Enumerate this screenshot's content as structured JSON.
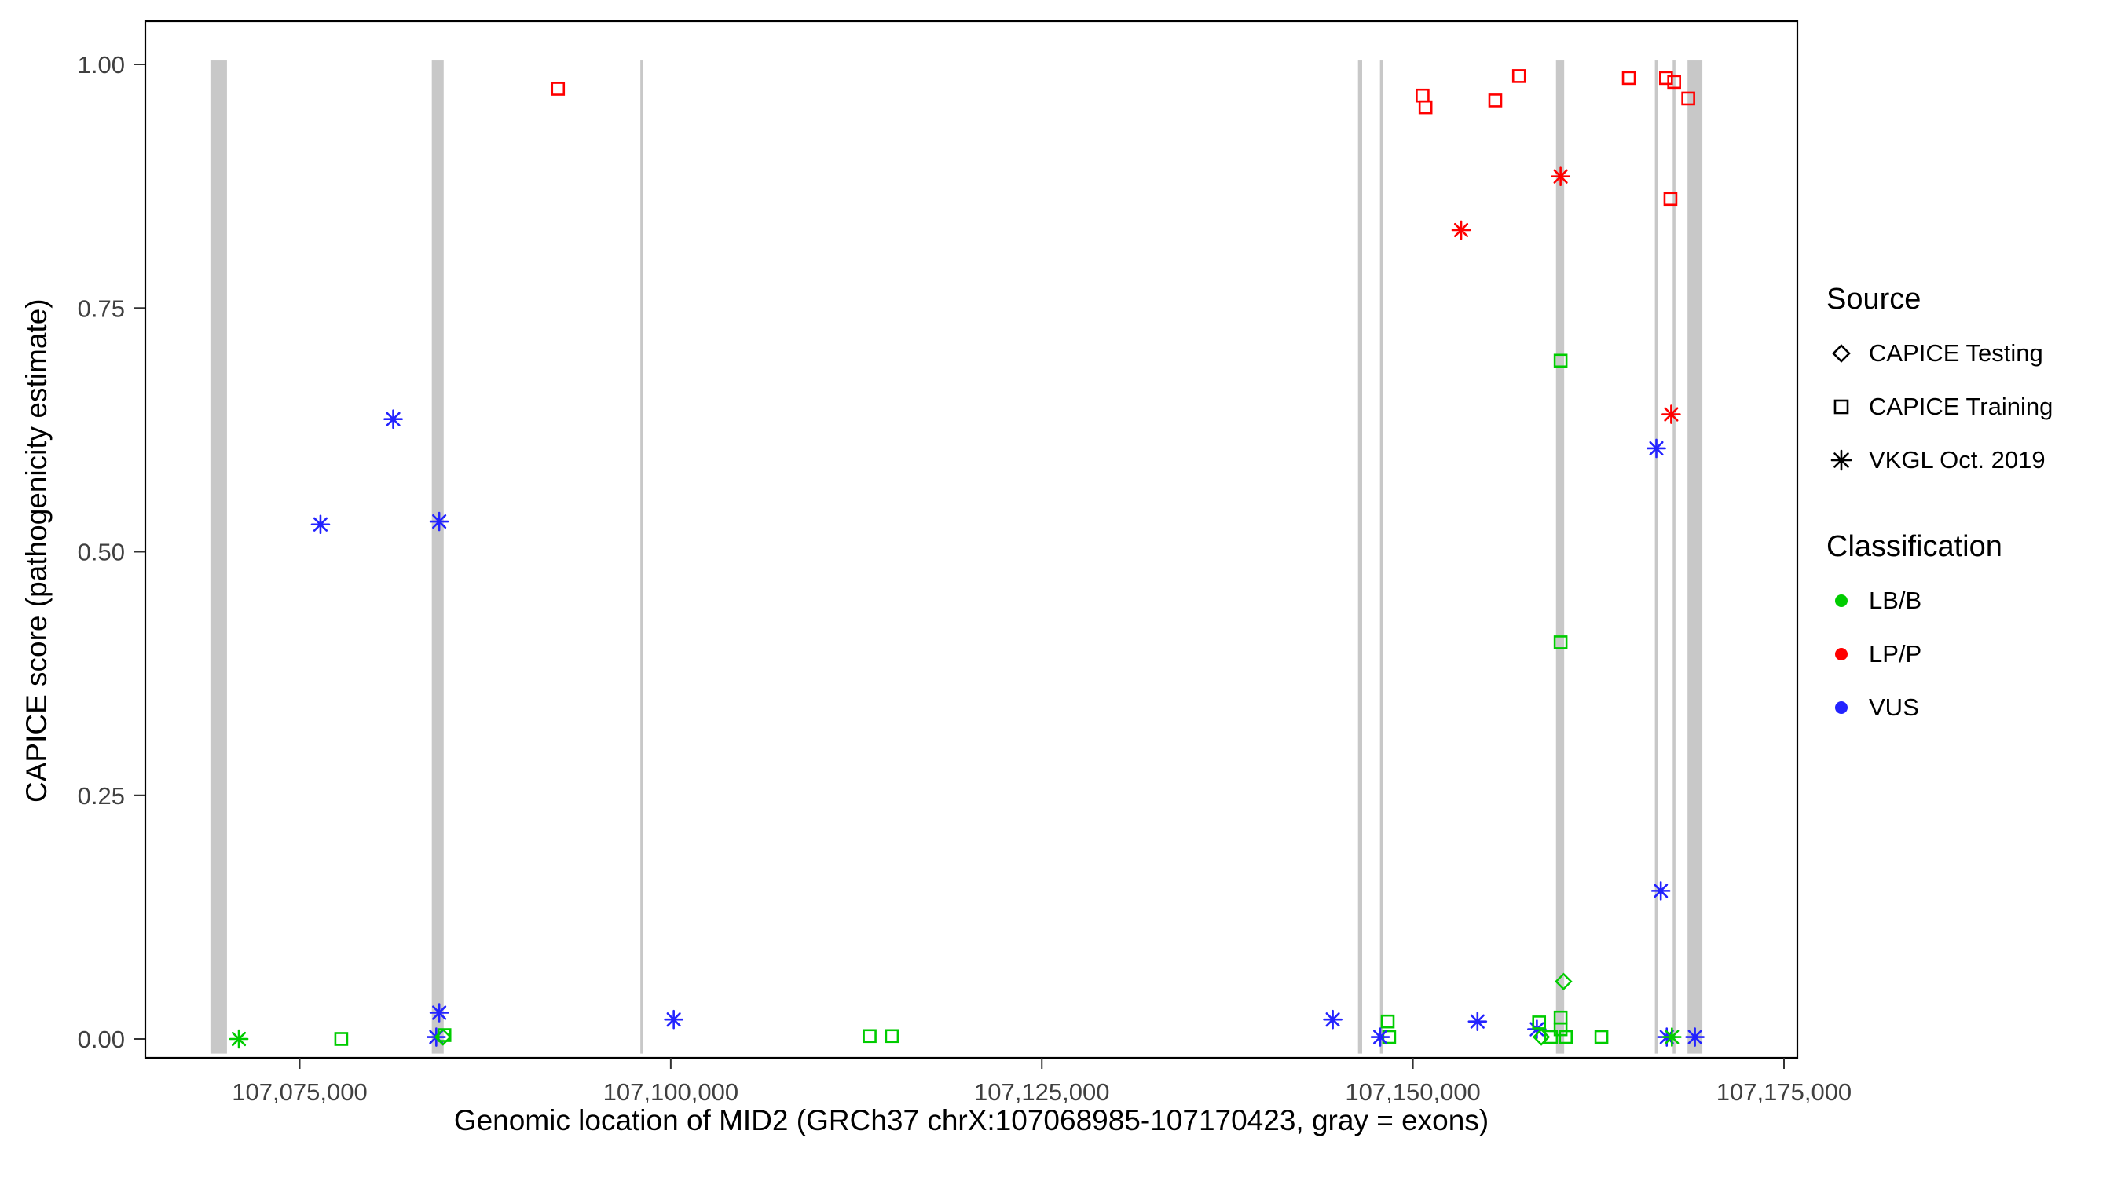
{
  "chart_data": {
    "type": "scatter",
    "title": "",
    "xlabel": "Genomic location of MID2 (GRCh37 chrX:107068985-107170423, gray = exons)",
    "ylabel": "CAPICE score (pathogenicity estimate)",
    "xlim": [
      107064600,
      107175900
    ],
    "ylim": [
      0,
      1
    ],
    "grid": false,
    "legend_position": "right",
    "x_ticks": [
      {
        "value": 107075000,
        "label": "107,075,000"
      },
      {
        "value": 107100000,
        "label": "107,100,000"
      },
      {
        "value": 107125000,
        "label": "107,125,000"
      },
      {
        "value": 107150000,
        "label": "107,150,000"
      },
      {
        "value": 107175000,
        "label": "107,175,000"
      }
    ],
    "y_ticks": [
      {
        "value": 0.0,
        "label": "0.00"
      },
      {
        "value": 0.25,
        "label": "0.25"
      },
      {
        "value": 0.5,
        "label": "0.50"
      },
      {
        "value": 0.75,
        "label": "0.75"
      },
      {
        "value": 1.0,
        "label": "1.00"
      }
    ],
    "exon_color": "#c8c8c8",
    "exons": [
      [
        107068985,
        107070100
      ],
      [
        107083900,
        107084700
      ],
      [
        107097950,
        107098150
      ],
      [
        107146300,
        107146580
      ],
      [
        107147780,
        107147970
      ],
      [
        107159640,
        107160190
      ],
      [
        107166300,
        107166490
      ],
      [
        107167500,
        107167690
      ],
      [
        107168500,
        107169500
      ]
    ],
    "class_colors": {
      "LB/B": "#00cc00",
      "LP/P": "#ff0000",
      "VUS": "#2323ff"
    },
    "shape_map": {
      "CAPICE Testing": "diamond",
      "CAPICE Training": "square",
      "VKGL Oct. 2019": "asterisk"
    },
    "points": [
      {
        "x": 107070900,
        "y": 0.0,
        "source": "VKGL Oct. 2019",
        "classification": "LB/B"
      },
      {
        "x": 107076400,
        "y": 0.528,
        "source": "VKGL Oct. 2019",
        "classification": "VUS"
      },
      {
        "x": 107077800,
        "y": 0.0,
        "source": "CAPICE Training",
        "classification": "LB/B"
      },
      {
        "x": 107081300,
        "y": 0.636,
        "source": "VKGL Oct. 2019",
        "classification": "VUS"
      },
      {
        "x": 107084400,
        "y": 0.531,
        "source": "VKGL Oct. 2019",
        "classification": "VUS"
      },
      {
        "x": 107084400,
        "y": 0.027,
        "source": "VKGL Oct. 2019",
        "classification": "VUS"
      },
      {
        "x": 107084200,
        "y": 0.002,
        "source": "VKGL Oct. 2019",
        "classification": "VUS"
      },
      {
        "x": 107084650,
        "y": 0.002,
        "source": "CAPICE Testing",
        "classification": "LB/B"
      },
      {
        "x": 107084750,
        "y": 0.004,
        "source": "CAPICE Training",
        "classification": "LB/B"
      },
      {
        "x": 107092400,
        "y": 0.975,
        "source": "CAPICE Training",
        "classification": "LP/P"
      },
      {
        "x": 107100200,
        "y": 0.02,
        "source": "VKGL Oct. 2019",
        "classification": "VUS"
      },
      {
        "x": 107113400,
        "y": 0.003,
        "source": "CAPICE Training",
        "classification": "LB/B"
      },
      {
        "x": 107114900,
        "y": 0.003,
        "source": "CAPICE Training",
        "classification": "LB/B"
      },
      {
        "x": 107144600,
        "y": 0.02,
        "source": "VKGL Oct. 2019",
        "classification": "VUS"
      },
      {
        "x": 107148300,
        "y": 0.018,
        "source": "CAPICE Training",
        "classification": "LB/B"
      },
      {
        "x": 107148400,
        "y": 0.002,
        "source": "CAPICE Training",
        "classification": "LB/B"
      },
      {
        "x": 107147800,
        "y": 0.002,
        "source": "VKGL Oct. 2019",
        "classification": "VUS"
      },
      {
        "x": 107150650,
        "y": 0.968,
        "source": "CAPICE Training",
        "classification": "LP/P"
      },
      {
        "x": 107150850,
        "y": 0.956,
        "source": "CAPICE Training",
        "classification": "LP/P"
      },
      {
        "x": 107153250,
        "y": 0.83,
        "source": "VKGL Oct. 2019",
        "classification": "LP/P"
      },
      {
        "x": 107154350,
        "y": 0.018,
        "source": "VKGL Oct. 2019",
        "classification": "VUS"
      },
      {
        "x": 107155550,
        "y": 0.963,
        "source": "CAPICE Training",
        "classification": "LP/P"
      },
      {
        "x": 107157150,
        "y": 0.988,
        "source": "CAPICE Training",
        "classification": "LP/P"
      },
      {
        "x": 107159950,
        "y": 0.885,
        "source": "VKGL Oct. 2019",
        "classification": "LP/P"
      },
      {
        "x": 107159950,
        "y": 0.696,
        "source": "CAPICE Training",
        "classification": "LB/B"
      },
      {
        "x": 107159950,
        "y": 0.407,
        "source": "CAPICE Training",
        "classification": "LB/B"
      },
      {
        "x": 107160150,
        "y": 0.059,
        "source": "CAPICE Testing",
        "classification": "LB/B"
      },
      {
        "x": 107158350,
        "y": 0.01,
        "source": "VKGL Oct. 2019",
        "classification": "VUS"
      },
      {
        "x": 107158500,
        "y": 0.017,
        "source": "CAPICE Training",
        "classification": "LB/B"
      },
      {
        "x": 107158650,
        "y": 0.002,
        "source": "CAPICE Testing",
        "classification": "LB/B"
      },
      {
        "x": 107159300,
        "y": 0.002,
        "source": "CAPICE Training",
        "classification": "LB/B"
      },
      {
        "x": 107159950,
        "y": 0.022,
        "source": "CAPICE Training",
        "classification": "LB/B"
      },
      {
        "x": 107159950,
        "y": 0.01,
        "source": "CAPICE Training",
        "classification": "LB/B"
      },
      {
        "x": 107160300,
        "y": 0.002,
        "source": "CAPICE Training",
        "classification": "LB/B"
      },
      {
        "x": 107162700,
        "y": 0.002,
        "source": "CAPICE Training",
        "classification": "LB/B"
      },
      {
        "x": 107164550,
        "y": 0.986,
        "source": "CAPICE Training",
        "classification": "LP/P"
      },
      {
        "x": 107166400,
        "y": 0.606,
        "source": "VKGL Oct. 2019",
        "classification": "VUS"
      },
      {
        "x": 107166700,
        "y": 0.152,
        "source": "VKGL Oct. 2019",
        "classification": "VUS"
      },
      {
        "x": 107167050,
        "y": 0.986,
        "source": "CAPICE Training",
        "classification": "LP/P"
      },
      {
        "x": 107167600,
        "y": 0.982,
        "source": "CAPICE Training",
        "classification": "LP/P"
      },
      {
        "x": 107167350,
        "y": 0.862,
        "source": "CAPICE Training",
        "classification": "LP/P"
      },
      {
        "x": 107167400,
        "y": 0.641,
        "source": "VKGL Oct. 2019",
        "classification": "LP/P"
      },
      {
        "x": 107168550,
        "y": 0.965,
        "source": "CAPICE Training",
        "classification": "LP/P"
      },
      {
        "x": 107167100,
        "y": 0.002,
        "source": "VKGL Oct. 2019",
        "classification": "VUS"
      },
      {
        "x": 107167450,
        "y": 0.002,
        "source": "VKGL Oct. 2019",
        "classification": "LB/B"
      },
      {
        "x": 107169000,
        "y": 0.002,
        "source": "VKGL Oct. 2019",
        "classification": "VUS"
      }
    ]
  },
  "legend": {
    "source": {
      "title": "Source",
      "items": [
        {
          "label": "CAPICE Testing",
          "shape": "diamond"
        },
        {
          "label": "CAPICE Training",
          "shape": "square"
        },
        {
          "label": "VKGL Oct. 2019",
          "shape": "asterisk"
        }
      ]
    },
    "classification": {
      "title": "Classification",
      "items": [
        {
          "label": "LB/B",
          "color": "#00cc00"
        },
        {
          "label": "LP/P",
          "color": "#ff0000"
        },
        {
          "label": "VUS",
          "color": "#2323ff"
        }
      ]
    }
  }
}
